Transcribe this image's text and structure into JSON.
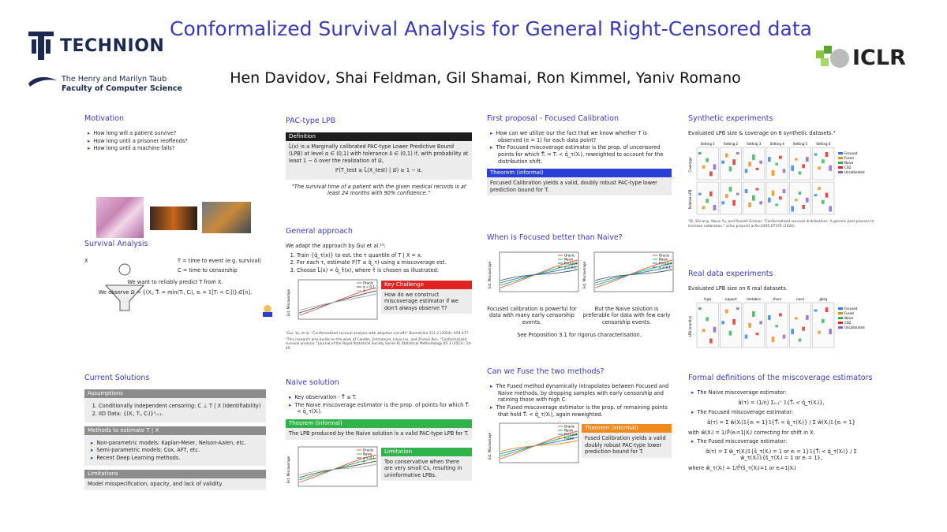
{
  "header": {
    "title": "Conformalized Survival Analysis for General Right-Censored data",
    "authors": "Hen Davidov, Shai Feldman, Gil Shamai, Ron Kimmel, Yaniv Romano",
    "technion": "TECHNION",
    "faculty_line1": "The Henry and Marilyn Taub",
    "faculty_line2": "Faculty of Computer Science",
    "iclr": "ICLR"
  },
  "sections": [
    {
      "heading": "Motivation",
      "blocks": [
        {
          "bullets": [
            "How long will a patient survive?",
            "How long until a prisoner reoffends?",
            "How long until a machine fails?"
          ]
        }
      ]
    },
    {
      "heading": "Survival Analysis",
      "blocks": [
        {
          "columns": [
            [
              {
                "text": "X"
              }
            ],
            [
              {
                "text": "T = time to event (e.g. survival)"
              },
              {
                "text": "C = time to censorship"
              }
            ]
          ]
        },
        {
          "formula": "We want to reliably predict T from X."
        },
        {
          "formula": "We observe 𝒟 = {(Xᵢ, T̃ᵢ = min(Tᵢ, Cᵢ), eᵢ = 𝟙[Tᵢ < Cᵢ])}ᵢ∈[n]."
        }
      ]
    },
    {
      "heading": "Current Solutions",
      "blocks": [
        {
          "box_title": "Assumptions",
          "box_color": "#8c8c8c",
          "box_numbered": [
            "Conditionally independent censoring: C ⊥ T | X (Identifiability)",
            "IID Data: {(Xᵢ, Tᵢ, Cᵢ)}ⁿᵢ₌₁."
          ]
        },
        {
          "box_title": "Methods to estimate T | X",
          "box_color": "#8c8c8c",
          "box_bullets": [
            "Non-parametric models: Kaplan-Meier, Nelson-Aalen, etc.",
            "Semi-parametric models: Cox, AFT, etc.",
            "Recent Deep Learning methods."
          ]
        },
        {
          "box_title": "Limitations",
          "box_color": "#8c8c8c",
          "box_text": "Model misspecification, opacity, and lack of validity."
        }
      ]
    },
    {
      "heading": "PAC-type LPB",
      "blocks": [
        {
          "box_title": "Definition",
          "box_color": "#1e1e1e",
          "box_text": "L̂(x) is a Marginally calibrated PAC-type Lower Predictive Bound (LPB) at level α ∈ (0,1) with tolerance δ ∈ (0,1) if, with probability at least 1 − δ over the realization of 𝒟,",
          "box_formula": "ℙ(T_test ≥ L̂(X_test) | 𝒟) ≥ 1 − α."
        },
        {
          "quote": "“The survival time of a patient with the given medical records is at least 24 months with 90% confidence.”"
        }
      ]
    },
    {
      "heading": "General approach",
      "blocks": [
        {
          "text": "We adapt the approach by Gui et al.¹²:"
        },
        {
          "numbered": [
            "Train {q̂_τ(x)} to est. the τ quantile of T | X = x.",
            "For each τ, estimate ℙ(T ≤ q̂_τ) using a miscoverage est.",
            "Choose L̂(x) = q̂_τ̂(x), where τ̂ is chosen as illustrated:"
          ]
        },
        {
          "columns": [
            [
              {
                "ylabel": "Est. Miscoverage",
                "legend": [
                  {
                    "name": "Oracle",
                    "color": "#e8594a"
                  },
                  {
                    "name": "α = 0.1",
                    "color": "#555555"
                  },
                  {
                    "name": "τ̂",
                    "color": "#aaaaaa"
                  }
                ]
              }
            ],
            [
              {
                "box_title": "Key Challenge",
                "box_color": "#e02424",
                "box_text": "How do we construct miscoverage estimator if we don't always observe T?"
              }
            ]
          ]
        },
        {
          "footnote": "¹Gui, Yu, et al. \"Conformalized survival analysis with adaptive cut-offs\" Biometrika 111.2 (2024): 459-477."
        },
        {
          "footnote": "²This research also builds on the work of Candès, Emmanuel, Lihua Lei, and Zhimei Ren. \"Conformalized survival analysis.\" Journal of the Royal Statistical Society Series B: Statistical Methodology 85.1 (2023): 24-45."
        }
      ]
    },
    {
      "heading": "Naive solution",
      "blocks": [
        {
          "bullets": [
            "Key observation - T̃ ≤ T.",
            "The Naive miscoverage estimator is the prop. of points for which T̃ᵢ < q̂_τ(Xᵢ)."
          ]
        },
        {
          "box_title": "Theorem (informal)",
          "box_color": "#2fb34a",
          "box_text": "The LPB produced by the Naive solution is a valid PAC-type LPB for T."
        },
        {
          "columns": [
            [
              {
                "ylabel": "Est. Miscoverage",
                "legend": [
                  {
                    "name": "Oracle",
                    "color": "#e8594a"
                  },
                  {
                    "name": "Naive",
                    "color": "#2fb34a"
                  },
                  {
                    "name": "α = 0.1",
                    "color": "#555555"
                  },
                  {
                    "name": "τ̂",
                    "color": "#aaaaaa"
                  }
                ]
              }
            ],
            [
              {
                "box_title": "Limitation",
                "box_color": "#2fb34a",
                "box_text": "Too conservative when there are very small Cs, resulting in uninformative LPBs."
              }
            ]
          ]
        }
      ]
    },
    {
      "heading": "First proposal - Focused Calibration",
      "blocks": [
        {
          "bullets": [
            "How can we utilize our the fact that we know whether T is observed (e = 1) for each data point?",
            "The Focused miscoverage estimator is the prop. of uncensored points for which T̃ᵢ = Tᵢ < q̂_τ(Xᵢ), reweighted to account for the distribution shift."
          ]
        },
        {
          "box_title": "Theorem (informal)",
          "box_color": "#2a3fd6",
          "box_text": "Focused Calibration yields a valid, doubly robust PAC-type lower prediction bound for T."
        }
      ]
    },
    {
      "heading": "When is Focused better than Naive?",
      "blocks": [
        {
          "columns": [
            [
              {
                "ylabel": "Est. Miscoverage",
                "legend": [
                  {
                    "name": "Oracle",
                    "color": "#e8594a"
                  },
                  {
                    "name": "Naive",
                    "color": "#2fb34a"
                  },
                  {
                    "name": "Focused",
                    "color": "#2a7fd6"
                  },
                  {
                    "name": "α = 0.1",
                    "color": "#555555"
                  }
                ]
              },
              {
                "caption": "Focused calibration is powerful for data with many early censorship events."
              }
            ],
            [
              {
                "ylabel": "Est. Miscoverage",
                "legend": [
                  {
                    "name": "Oracle",
                    "color": "#e8594a"
                  },
                  {
                    "name": "Naive",
                    "color": "#2fb34a"
                  },
                  {
                    "name": "Focused",
                    "color": "#2a7fd6"
                  },
                  {
                    "name": "α = 0.1",
                    "color": "#555555"
                  }
                ]
              },
              {
                "caption": "But the Naive solution is preferable for data with few early censorship events."
              }
            ]
          ]
        },
        {
          "formula": "See Proposition 3.1 for rigorus characterisation."
        }
      ]
    },
    {
      "heading": "Can we Fuse the two methods?",
      "blocks": [
        {
          "bullets": [
            "The Fused method dynamically intrapolates between Focused and Naive methods, by dropping samples with early censorship and ratining those with high C.",
            "The Fused miscoverage estimator is the prop. of remaining points that hold T̃ᵢ < q̂_τ(Xᵢ), again reweighted."
          ]
        },
        {
          "columns": [
            [
              {
                "ylabel": "Est. Miscoverage",
                "legend": [
                  {
                    "name": "Oracle",
                    "color": "#e8594a"
                  },
                  {
                    "name": "Naive",
                    "color": "#2fb34a"
                  },
                  {
                    "name": "Focused",
                    "color": "#2a7fd6"
                  },
                  {
                    "name": "Fused",
                    "color": "#f08a1c"
                  }
                ]
              }
            ],
            [
              {
                "box_title": "Theorem (informal)",
                "box_color": "#f08a1c",
                "box_text": "Fused Calibration yields a valid doubly robust PAC-type lower prediction bound for T."
              }
            ]
          ]
        }
      ]
    },
    {
      "heading": "Synthetic experiments",
      "blocks": [
        {
          "text": "Evaluated LPB size & coverage on 6 synthetic datasets.³"
        },
        {
          "panels": [
            "Setting 1",
            "Setting 2",
            "Setting 3",
            "Setting 4",
            "Setting 5",
            "Setting 6"
          ],
          "rows": [
            "Coverage",
            "Relative LPB"
          ],
          "panel_legend": [
            {
              "name": "Focused",
              "color": "#2a7fd6"
            },
            {
              "name": "Fused",
              "color": "#f08a1c"
            },
            {
              "name": "Naive",
              "color": "#2fb34a"
            },
            {
              "name": "CSD",
              "color": "#e02424"
            },
            {
              "name": "Uncalibrated",
              "color": "#8b5fbf"
            }
          ]
        },
        {
          "footnote": "³Qi, Shi-ang, Yakun Yu, and Russell Greiner. \"Conformalized survival distributions: A generic post-process to increase calibration.\" arXiv preprint arXiv:2405.07374 (2024)."
        }
      ]
    },
    {
      "heading": "Real data experiments",
      "blocks": [
        {
          "text": "Evaluated LPB size on 6 real datasets."
        },
        {
          "panels": [
            "tcga",
            "support",
            "metabric",
            "churn",
            "nacd",
            "gbsg"
          ],
          "rows": [
            "LPB (months)"
          ],
          "panel_legend": [
            {
              "name": "Focused",
              "color": "#2a7fd6"
            },
            {
              "name": "Fused",
              "color": "#f08a1c"
            },
            {
              "name": "Naive",
              "color": "#2fb34a"
            },
            {
              "name": "CSD",
              "color": "#e02424"
            },
            {
              "name": "Uncalibrated",
              "color": "#8b5fbf"
            }
          ]
        }
      ]
    },
    {
      "heading": "Formal definitions of the miscoverage estimators",
      "blocks": [
        {
          "bullets": [
            "The Naive miscoverage estimator:"
          ]
        },
        {
          "formula": "α̂(τ) = (1/n) Σᵢ₌₁ⁿ 𝟙{T̃ᵢ < q̂_τ(Xᵢ)},"
        },
        {
          "bullets": [
            "The Focused miscoverage estimator:"
          ]
        },
        {
          "formula": "α̂(τ) = Σ ŵ(Xᵢ)𝟙{eᵢ = 1}𝟙{T̃ᵢ < q̂_τ(Xᵢ)} / Σ ŵ(Xᵢ)𝟙{eᵢ = 1}"
        },
        {
          "text": "with ŵ(Xᵢ) = 1/ℙ̂(eᵢ=1|Xᵢ) correcting for shift in X."
        },
        {
          "bullets": [
            "The Fused miscoverage estimator:"
          ]
        },
        {
          "formula": "α̂(τ) = Σ ŵ_τ(Xᵢ)𝟙{ŝ_τ(Xᵢ) = 1 or eᵢ = 1}𝟙{T̃ᵢ < q̂_τ(Xᵢ)} / Σ ŵ_τ(Xᵢ)𝟙{ŝ_τ(Xᵢ) = 1 or eᵢ = 1},"
        },
        {
          "text": "where ŵ_τ(Xᵢ) = 1/ℙ̂(ŝ_τ(Xᵢ)=1 or eᵢ=1|Xᵢ)"
        }
      ]
    }
  ]
}
